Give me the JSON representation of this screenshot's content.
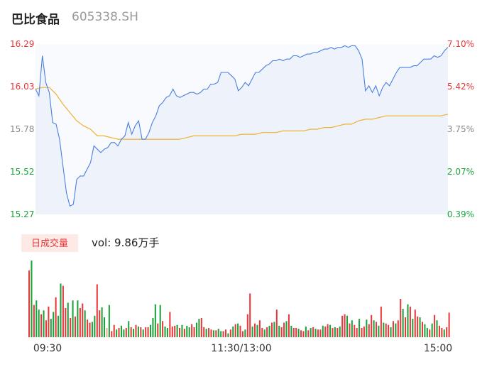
{
  "header": {
    "name": "巴比食品",
    "code": "605338.SH"
  },
  "colors": {
    "price_line": "#4a7fe0",
    "avg_line": "#f0b030",
    "area_fill": "#eef3fb",
    "up": "#e6393b",
    "down": "#1aa33a",
    "neutral": "#888888",
    "badge_bg": "#fde9e6"
  },
  "chart_data": [
    {
      "type": "line",
      "yaxis_left": {
        "labels": [
          "16.29",
          "16.03",
          "15.78",
          "15.52",
          "15.27"
        ],
        "range": [
          15.27,
          16.29
        ]
      },
      "yaxis_right": {
        "labels": [
          "7.10%",
          "5.42%",
          "3.75%",
          "2.07%",
          "0.39%"
        ],
        "range": [
          0.39,
          7.1
        ]
      },
      "x_labels": [
        "09:30",
        "11:30/13:00",
        "15:00"
      ],
      "series": [
        {
          "role": "price",
          "x": [
            0,
            2,
            4,
            6,
            8,
            10,
            12,
            14,
            16,
            18,
            20,
            22,
            24,
            26,
            28,
            30,
            32,
            34,
            36,
            38,
            40,
            42,
            44,
            46,
            48,
            50,
            52,
            54,
            56,
            58,
            60,
            62,
            64,
            66,
            68,
            70,
            72,
            74,
            76,
            78,
            80,
            82,
            84,
            86,
            88,
            90,
            92,
            94,
            96,
            98,
            100,
            102,
            104,
            106,
            108,
            110,
            112,
            114,
            116,
            118,
            120,
            122,
            124,
            126,
            128,
            130,
            132,
            134,
            136,
            138,
            140,
            142,
            144,
            146,
            148,
            150,
            152,
            154,
            156,
            158,
            160,
            162,
            164,
            166,
            168,
            170,
            172,
            174,
            176,
            178,
            180,
            182,
            184,
            186,
            188,
            190,
            192,
            194,
            196,
            198,
            200,
            202,
            204,
            206,
            208,
            210,
            212,
            214,
            216,
            218,
            220,
            222,
            224,
            226,
            228,
            230,
            232,
            234,
            236,
            238,
            240
          ],
          "y": [
            16.02,
            15.98,
            16.22,
            16.06,
            16.0,
            15.82,
            15.81,
            15.72,
            15.56,
            15.4,
            15.32,
            15.33,
            15.48,
            15.5,
            15.5,
            15.54,
            15.58,
            15.68,
            15.66,
            15.64,
            15.66,
            15.67,
            15.7,
            15.7,
            15.68,
            15.72,
            15.74,
            15.82,
            15.75,
            15.8,
            15.83,
            15.72,
            15.72,
            15.76,
            15.82,
            15.86,
            15.92,
            15.94,
            15.97,
            15.98,
            16.02,
            15.98,
            15.97,
            15.98,
            15.99,
            16.0,
            16.0,
            15.99,
            16.0,
            16.02,
            16.02,
            16.05,
            16.05,
            16.06,
            16.12,
            16.12,
            16.12,
            16.1,
            16.08,
            16.01,
            16.03,
            16.06,
            16.04,
            16.08,
            16.12,
            16.12,
            16.14,
            16.16,
            16.17,
            16.19,
            16.19,
            16.2,
            16.19,
            16.2,
            16.2,
            16.22,
            16.22,
            16.21,
            16.22,
            16.23,
            16.23,
            16.24,
            16.24,
            16.25,
            16.26,
            16.26,
            16.27,
            16.26,
            16.27,
            16.27,
            16.28,
            16.27,
            16.28,
            16.28,
            16.25,
            16.2,
            16.01,
            16.04,
            16.0,
            16.04,
            15.98,
            16.03,
            16.06,
            16.04,
            16.08,
            16.12,
            16.15,
            16.15,
            16.15,
            16.15,
            16.16,
            16.16,
            16.18,
            16.2,
            16.2,
            16.2,
            16.22,
            16.21,
            16.22,
            16.25,
            16.27
          ]
        },
        {
          "role": "average",
          "x": [
            0,
            4,
            8,
            12,
            16,
            20,
            24,
            28,
            32,
            36,
            40,
            44,
            48,
            52,
            56,
            60,
            64,
            68,
            72,
            76,
            80,
            84,
            88,
            92,
            96,
            100,
            104,
            108,
            112,
            116,
            120,
            124,
            128,
            132,
            136,
            140,
            144,
            148,
            152,
            156,
            160,
            164,
            168,
            172,
            176,
            180,
            184,
            188,
            192,
            196,
            200,
            204,
            208,
            212,
            216,
            220,
            224,
            228,
            232,
            236,
            240
          ],
          "y": [
            16.02,
            16.03,
            16.03,
            15.99,
            15.93,
            15.88,
            15.83,
            15.8,
            15.78,
            15.74,
            15.74,
            15.73,
            15.72,
            15.72,
            15.72,
            15.72,
            15.72,
            15.72,
            15.72,
            15.72,
            15.72,
            15.72,
            15.73,
            15.74,
            15.74,
            15.74,
            15.74,
            15.74,
            15.74,
            15.74,
            15.75,
            15.75,
            15.75,
            15.76,
            15.76,
            15.76,
            15.77,
            15.77,
            15.77,
            15.77,
            15.78,
            15.78,
            15.79,
            15.79,
            15.8,
            15.81,
            15.81,
            15.83,
            15.84,
            15.84,
            15.85,
            15.86,
            15.86,
            15.86,
            15.86,
            15.86,
            15.86,
            15.86,
            15.86,
            15.86,
            15.87
          ]
        }
      ]
    },
    {
      "type": "bar",
      "badge": "日成交量",
      "label": "vol: 9.86万手",
      "values": [
        0.87,
        1.0,
        0.42,
        0.48,
        0.36,
        0.3,
        0.35,
        0.22,
        0.4,
        0.24,
        0.33,
        0.52,
        0.28,
        0.7,
        0.67,
        0.38,
        0.45,
        0.25,
        0.48,
        0.27,
        0.48,
        0.38,
        0.44,
        0.35,
        0.23,
        0.19,
        0.2,
        0.28,
        0.69,
        0.35,
        0.39,
        0.26,
        0.12,
        0.42,
        0.08,
        0.16,
        0.1,
        0.12,
        0.15,
        0.1,
        0.12,
        0.21,
        0.13,
        0.11,
        0.16,
        0.14,
        0.13,
        0.1,
        0.13,
        0.13,
        0.16,
        0.25,
        0.43,
        0.18,
        0.42,
        0.21,
        0.14,
        0.12,
        0.33,
        0.14,
        0.15,
        0.16,
        0.12,
        0.16,
        0.11,
        0.15,
        0.13,
        0.17,
        0.13,
        0.19,
        0.24,
        0.25,
        0.13,
        0.11,
        0.12,
        0.1,
        0.09,
        0.09,
        0.11,
        0.08,
        0.08,
        0.1,
        0.05,
        0.1,
        0.14,
        0.17,
        0.18,
        0.15,
        0.08,
        0.1,
        0.3,
        0.57,
        0.14,
        0.18,
        0.16,
        0.22,
        0.12,
        0.1,
        0.13,
        0.15,
        0.19,
        0.2,
        0.36,
        0.15,
        0.13,
        0.19,
        0.21,
        0.3,
        0.15,
        0.12,
        0.12,
        0.11,
        0.09,
        0.08,
        0.14,
        0.09,
        0.12,
        0.13,
        0.11,
        0.1,
        0.1,
        0.15,
        0.14,
        0.17,
        0.16,
        0.12,
        0.13,
        0.12,
        0.14,
        0.28,
        0.3,
        0.28,
        0.18,
        0.22,
        0.16,
        0.12,
        0.24,
        0.12,
        0.14,
        0.23,
        0.17,
        0.29,
        0.22,
        0.2,
        0.15,
        0.4,
        0.19,
        0.18,
        0.16,
        0.13,
        0.21,
        0.18,
        0.22,
        0.5,
        0.37,
        0.26,
        0.43,
        0.4,
        0.24,
        0.36,
        0.27,
        0.26,
        0.2,
        0.17,
        0.12,
        0.1,
        0.18,
        0.29,
        0.22,
        0.15,
        0.12,
        0.1,
        0.13,
        0.32
      ],
      "directions": [
        "u",
        "d",
        "u",
        "d",
        "d",
        "u",
        "d",
        "u",
        "u",
        "d",
        "d",
        "u",
        "d",
        "d",
        "u",
        "u",
        "d",
        "u",
        "d",
        "u",
        "d",
        "u",
        "u",
        "d",
        "u",
        "u",
        "d",
        "d",
        "u",
        "u",
        "d",
        "d",
        "n",
        "d",
        "u",
        "u",
        "d",
        "u",
        "d",
        "d",
        "u",
        "d",
        "u",
        "d",
        "u",
        "d",
        "u",
        "d",
        "u",
        "u",
        "d",
        "d",
        "d",
        "u",
        "d",
        "u",
        "d",
        "d",
        "u",
        "u",
        "u",
        "d",
        "u",
        "d",
        "u",
        "d",
        "d",
        "u",
        "u",
        "d",
        "d",
        "u",
        "u",
        "d",
        "u",
        "u",
        "d",
        "u",
        "d",
        "d",
        "u",
        "u",
        "d",
        "u",
        "d",
        "u",
        "d",
        "u",
        "u",
        "d",
        "u",
        "u",
        "d",
        "u",
        "d",
        "u",
        "u",
        "d",
        "u",
        "d",
        "u",
        "d",
        "u",
        "d",
        "u",
        "u",
        "d",
        "u",
        "d",
        "u",
        "u",
        "d",
        "u",
        "u",
        "d",
        "u",
        "d",
        "u",
        "d",
        "u",
        "u",
        "d",
        "u",
        "u",
        "d",
        "u",
        "d",
        "u",
        "d",
        "u",
        "u",
        "d",
        "u",
        "d",
        "u",
        "u",
        "d",
        "u",
        "u",
        "d",
        "u",
        "u",
        "d",
        "u",
        "d",
        "u",
        "d",
        "u",
        "u",
        "d",
        "u",
        "d",
        "u",
        "u",
        "d",
        "u",
        "d",
        "u",
        "d",
        "u",
        "u",
        "d",
        "u",
        "d",
        "d",
        "u",
        "d",
        "u",
        "d",
        "u",
        "u",
        "d",
        "u",
        "u",
        "n"
      ]
    }
  ]
}
